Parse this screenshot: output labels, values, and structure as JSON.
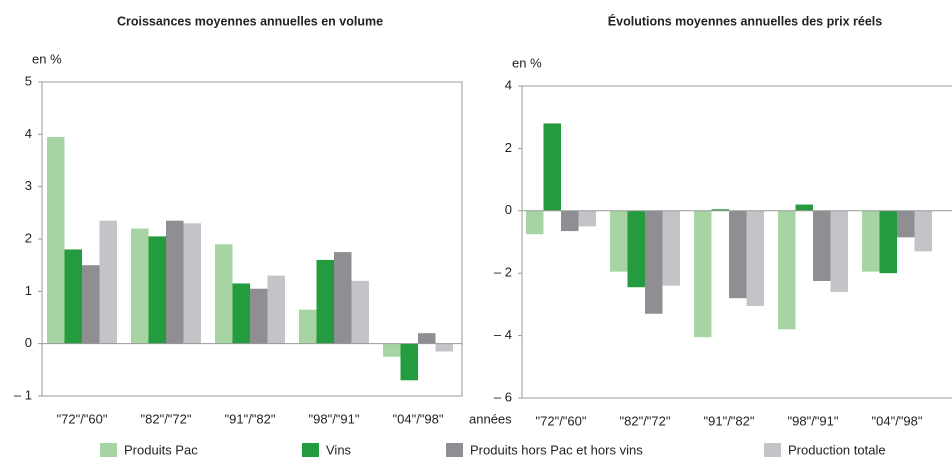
{
  "chart_data": [
    {
      "type": "bar",
      "title": "Croissances moyennes annuelles en volume",
      "y_label": "en %",
      "x_label": "années",
      "categories": [
        "\"72\"/\"60\"",
        "\"82\"/\"72\"",
        "\"91\"/\"82\"",
        "\"98\"/\"91\"",
        "\"04\"/\"98\""
      ],
      "series": [
        {
          "name": "Produits Pac",
          "color": "#a6d4a3",
          "values": [
            3.95,
            2.2,
            1.9,
            0.65,
            -0.25
          ]
        },
        {
          "name": "Vins",
          "color": "#259b3f",
          "values": [
            1.8,
            2.05,
            1.15,
            1.6,
            -0.7
          ]
        },
        {
          "name": "Produits  hors Pac et hors vins",
          "color": "#8f8f93",
          "values": [
            1.5,
            2.35,
            1.05,
            1.75,
            0.2
          ]
        },
        {
          "name": "Production totale",
          "color": "#c3c3c8",
          "values": [
            2.35,
            2.3,
            1.3,
            1.2,
            -0.15
          ]
        }
      ],
      "ylim": [
        -1,
        5
      ],
      "yticks": [
        {
          "value": -1,
          "label": "– 1"
        },
        0,
        1,
        2,
        3,
        4,
        5
      ],
      "legend": "bottom"
    },
    {
      "type": "bar",
      "title": "Évolutions moyennes annuelles des prix réels",
      "y_label": "en %",
      "categories": [
        "\"72\"/\"60\"",
        "\"82\"/\"72\"",
        "\"91\"/\"82\"",
        "\"98\"/\"91\"",
        "\"04\"/\"98\""
      ],
      "series": [
        {
          "color": "#a6d4a3",
          "values": [
            -0.75,
            -1.95,
            -4.05,
            -3.8,
            -1.95
          ]
        },
        {
          "color": "#259b3f",
          "values": [
            2.8,
            -2.45,
            0.05,
            0.2,
            -2.0
          ]
        },
        {
          "color": "#8f8f93",
          "values": [
            -0.65,
            -3.3,
            -2.8,
            -2.25,
            -0.85
          ]
        },
        {
          "color": "#c3c3c8",
          "values": [
            -0.5,
            -2.4,
            -3.05,
            -2.6,
            -1.3
          ]
        }
      ],
      "ylim": [
        -6,
        4
      ],
      "yticks": [
        {
          "value": -6,
          "label": "– 6"
        },
        {
          "value": -4,
          "label": "– 4"
        },
        {
          "value": -2,
          "label": "– 2"
        },
        0,
        2,
        4
      ]
    }
  ]
}
